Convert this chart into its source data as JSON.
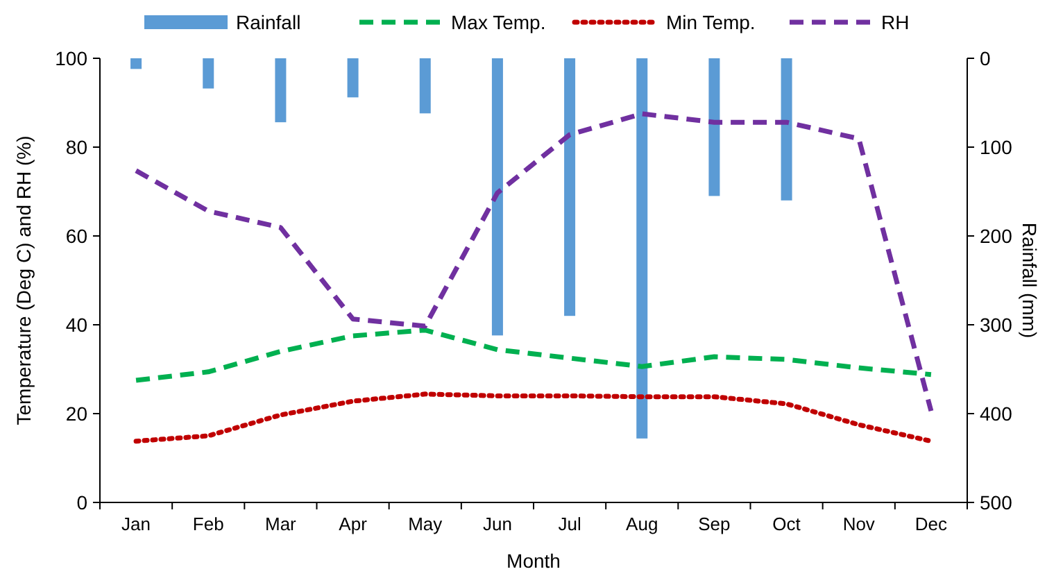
{
  "chart_data": {
    "type": "line",
    "xlabel": "Month",
    "ylabel": "Temperature (Deg C) and RH (%)",
    "y2label": "Rainfall (mm)",
    "categories": [
      "Jan",
      "Feb",
      "Mar",
      "Apr",
      "May",
      "Jun",
      "Jul",
      "Aug",
      "Sep",
      "Oct",
      "Nov",
      "Dec"
    ],
    "series": [
      {
        "name": "Rainfall",
        "type": "bar",
        "axis": "y2",
        "color": "#5b9bd5",
        "values": [
          12,
          34,
          72,
          44,
          62,
          312,
          290,
          428,
          155,
          160,
          null,
          null
        ]
      },
      {
        "name": "Max Temp.",
        "color": "#00b050",
        "line_style": "dashed",
        "values": [
          27.5,
          29.4,
          34,
          37.5,
          38.8,
          34.4,
          32.5,
          30.6,
          32.8,
          32.2,
          30.3,
          28.8
        ]
      },
      {
        "name": "Min Temp.",
        "color": "#c00000",
        "line_style": "dotted",
        "values": [
          13.8,
          15,
          19.7,
          22.8,
          24.4,
          24,
          24,
          23.8,
          23.8,
          22.2,
          17.5,
          13.8
        ]
      },
      {
        "name": "RH",
        "color": "#7030a0",
        "line_style": "dashed",
        "values": [
          74.7,
          65.6,
          61.9,
          41.3,
          39.7,
          69.7,
          82.8,
          87.5,
          85.6,
          85.6,
          81.9,
          20.6
        ]
      }
    ],
    "ylim": [
      0,
      100
    ],
    "yticks": [
      0,
      20,
      40,
      60,
      80,
      100
    ],
    "y2lim": [
      500,
      0
    ],
    "y2ticks": [
      0,
      100,
      200,
      300,
      400,
      500
    ],
    "grid": false,
    "legend": "top",
    "marker": "none"
  }
}
